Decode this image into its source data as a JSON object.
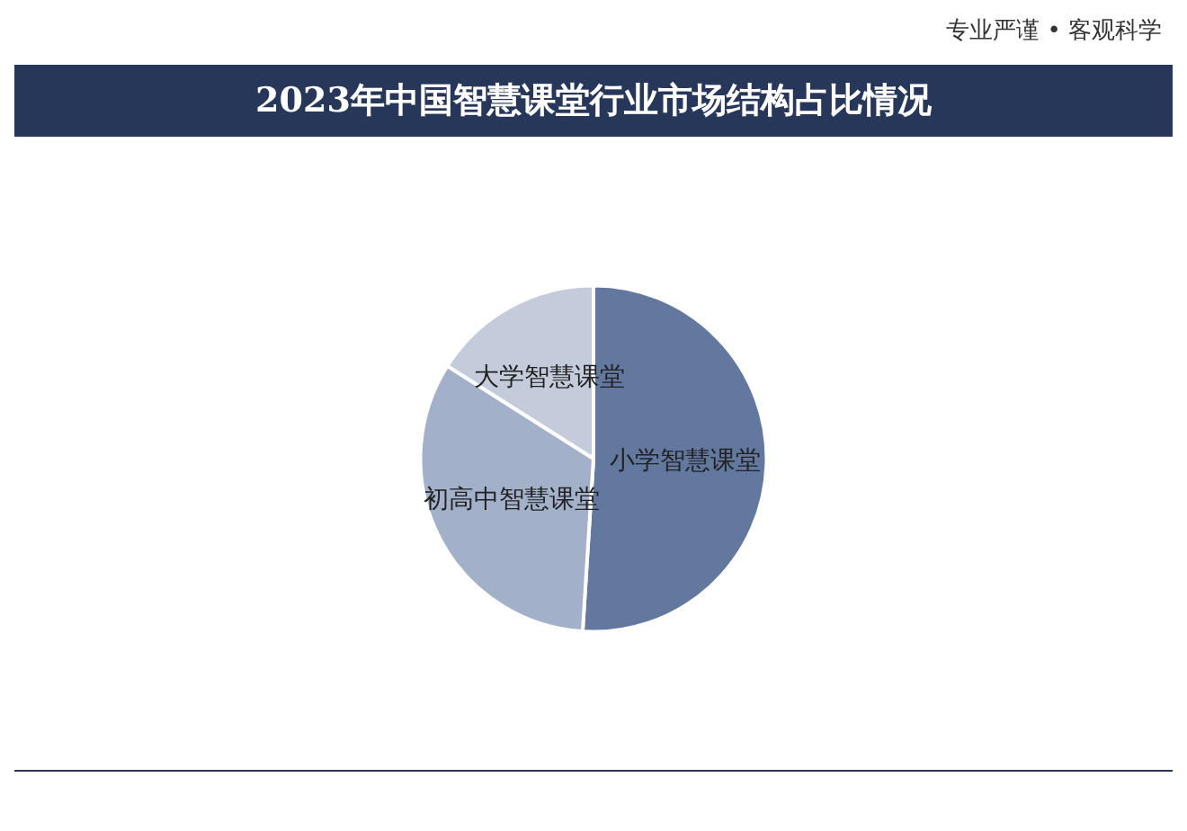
{
  "chart_data": {
    "type": "pie",
    "title": "2023年中国智慧课堂行业市场结构占比情况",
    "categories": [
      "小学智慧课堂",
      "初高中智慧课堂",
      "大学智慧课堂"
    ],
    "values": [
      51,
      33,
      16
    ],
    "colors": [
      "#62789f",
      "#a3b0ca",
      "#c4ccdb"
    ],
    "annotations": [
      "专业严谨 • 客观科学"
    ],
    "legend": false
  }
}
